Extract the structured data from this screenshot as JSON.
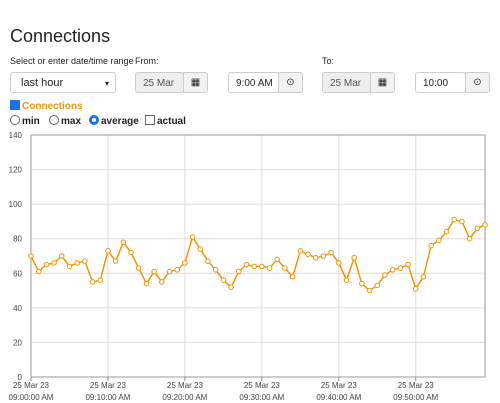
{
  "header": {
    "title": "Connections"
  },
  "controls": {
    "range_label": "Select or enter date/time range",
    "range_value": "last hour",
    "from_label": "From:",
    "from_date": "25 Mar 23",
    "from_time": "9:00 AM",
    "to_label": "To:",
    "to_date": "25 Mar 23",
    "to_time": "10:00 AM",
    "series_toggle": "Connections",
    "options": [
      "min",
      "max",
      "average",
      "actual"
    ]
  },
  "chart_data": {
    "type": "line",
    "x": [
      "09:00",
      "09:01",
      "09:02",
      "09:03",
      "09:04",
      "09:05",
      "09:06",
      "09:07",
      "09:08",
      "09:09",
      "09:10",
      "09:11",
      "09:12",
      "09:13",
      "09:14",
      "09:15",
      "09:16",
      "09:17",
      "09:18",
      "09:19",
      "09:20",
      "09:21",
      "09:22",
      "09:23",
      "09:24",
      "09:25",
      "09:26",
      "09:27",
      "09:28",
      "09:29",
      "09:30",
      "09:31",
      "09:32",
      "09:33",
      "09:34",
      "09:35",
      "09:36",
      "09:37",
      "09:38",
      "09:39",
      "09:40",
      "09:41",
      "09:42",
      "09:43",
      "09:44",
      "09:45",
      "09:46",
      "09:47",
      "09:48",
      "09:49",
      "09:50",
      "09:51",
      "09:52",
      "09:53",
      "09:54",
      "09:55",
      "09:56",
      "09:57",
      "09:58",
      "09:59"
    ],
    "series": [
      {
        "name": "Connections",
        "color": "#f0940a",
        "values": [
          70,
          61,
          65,
          66,
          70,
          64,
          66,
          67,
          55,
          56,
          73,
          67,
          78,
          72,
          63,
          54,
          61,
          55,
          61,
          62,
          66,
          81,
          74,
          67,
          62,
          56,
          52,
          61,
          65,
          64,
          64,
          63,
          68,
          63,
          58,
          73,
          71,
          69,
          70,
          72,
          66,
          56,
          69,
          54,
          50,
          53,
          59,
          62,
          63,
          65,
          51,
          58,
          76,
          79,
          84,
          91,
          90,
          80,
          86,
          88
        ]
      }
    ],
    "xlim": [
      "09:00",
      "09:59"
    ],
    "xticks": [
      {
        "value": "09:00",
        "label": [
          "25 Mar 23",
          "09:00:00 AM"
        ]
      },
      {
        "value": "09:10",
        "label": [
          "25 Mar 23",
          "09:10:00 AM"
        ]
      },
      {
        "value": "09:20",
        "label": [
          "25 Mar 23",
          "09:20:00 AM"
        ]
      },
      {
        "value": "09:30",
        "label": [
          "25 Mar 23",
          "09:30:00 AM"
        ]
      },
      {
        "value": "09:40",
        "label": [
          "25 Mar 23",
          "09:40:00 AM"
        ]
      },
      {
        "value": "09:50",
        "label": [
          "25 Mar 23",
          "09:50:00 AM"
        ]
      }
    ],
    "ylim": [
      0,
      140
    ],
    "yticks": [
      0,
      20,
      40,
      60,
      80,
      100,
      120,
      140
    ],
    "grid": true
  }
}
